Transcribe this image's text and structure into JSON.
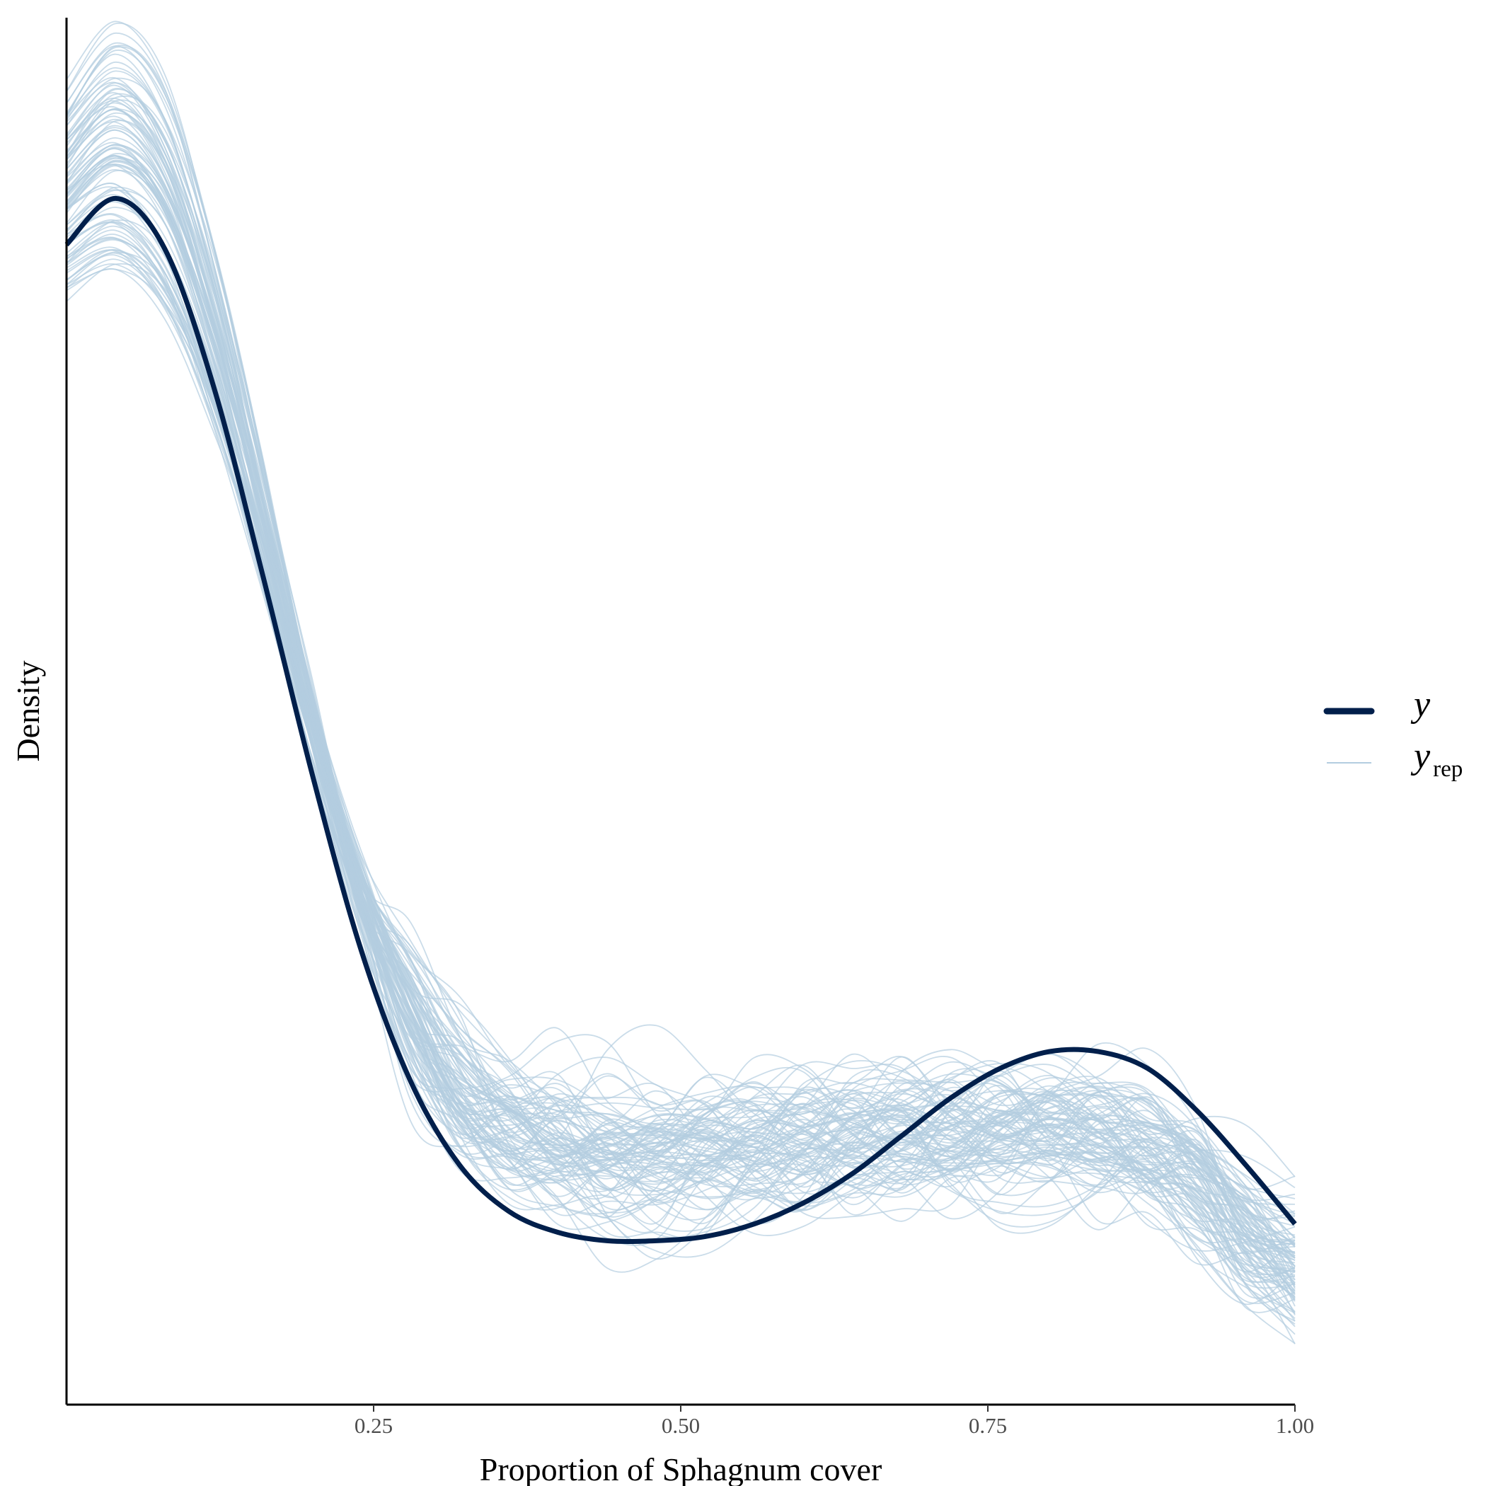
{
  "chart_data": {
    "type": "line",
    "title": "",
    "xlabel": "Proportion of Sphagnum cover",
    "ylabel": "Density",
    "xlim": [
      0.0,
      1.0
    ],
    "ylim": [
      0.0,
      3.3
    ],
    "x_ticks": [
      0.25,
      0.5,
      0.75,
      1.0
    ],
    "x_tick_labels": [
      "0.25",
      "0.50",
      "0.75",
      "1.00"
    ],
    "y_ticks_shown": false,
    "grid": false,
    "legend_position": "right",
    "legend": [
      {
        "label": "y",
        "style": "thick-line",
        "color": "#011f4b"
      },
      {
        "label": "y",
        "subscript": "rep",
        "style": "thin-line",
        "color": "#b3cde0"
      }
    ],
    "series": [
      {
        "name": "y",
        "color": "#011f4b",
        "x": [
          0.0,
          0.04,
          0.08,
          0.12,
          0.16,
          0.2,
          0.24,
          0.28,
          0.32,
          0.36,
          0.4,
          0.44,
          0.48,
          0.52,
          0.56,
          0.6,
          0.64,
          0.68,
          0.72,
          0.76,
          0.8,
          0.84,
          0.88,
          0.92,
          0.96,
          1.0
        ],
        "values": [
          2.76,
          2.87,
          2.75,
          2.42,
          1.97,
          1.5,
          1.08,
          0.77,
          0.57,
          0.46,
          0.41,
          0.39,
          0.39,
          0.4,
          0.43,
          0.48,
          0.55,
          0.64,
          0.73,
          0.8,
          0.84,
          0.84,
          0.8,
          0.7,
          0.57,
          0.43
        ]
      }
    ],
    "replicates": {
      "name": "y_rep",
      "color": "#b3cde0",
      "count": 100,
      "x": [
        0.0,
        0.04,
        0.08,
        0.12,
        0.16,
        0.2,
        0.24,
        0.28,
        0.32,
        0.36,
        0.4,
        0.44,
        0.48,
        0.52,
        0.56,
        0.6,
        0.64,
        0.68,
        0.72,
        0.76,
        0.8,
        0.84,
        0.88,
        0.92,
        0.96,
        1.0
      ],
      "mean": [
        2.9,
        3.0,
        2.88,
        2.55,
        2.1,
        1.62,
        1.22,
        0.93,
        0.75,
        0.66,
        0.62,
        0.6,
        0.59,
        0.6,
        0.61,
        0.62,
        0.63,
        0.64,
        0.65,
        0.66,
        0.66,
        0.65,
        0.61,
        0.52,
        0.4,
        0.33
      ],
      "spread_low": 0.28,
      "spread_high": 0.42
    }
  }
}
